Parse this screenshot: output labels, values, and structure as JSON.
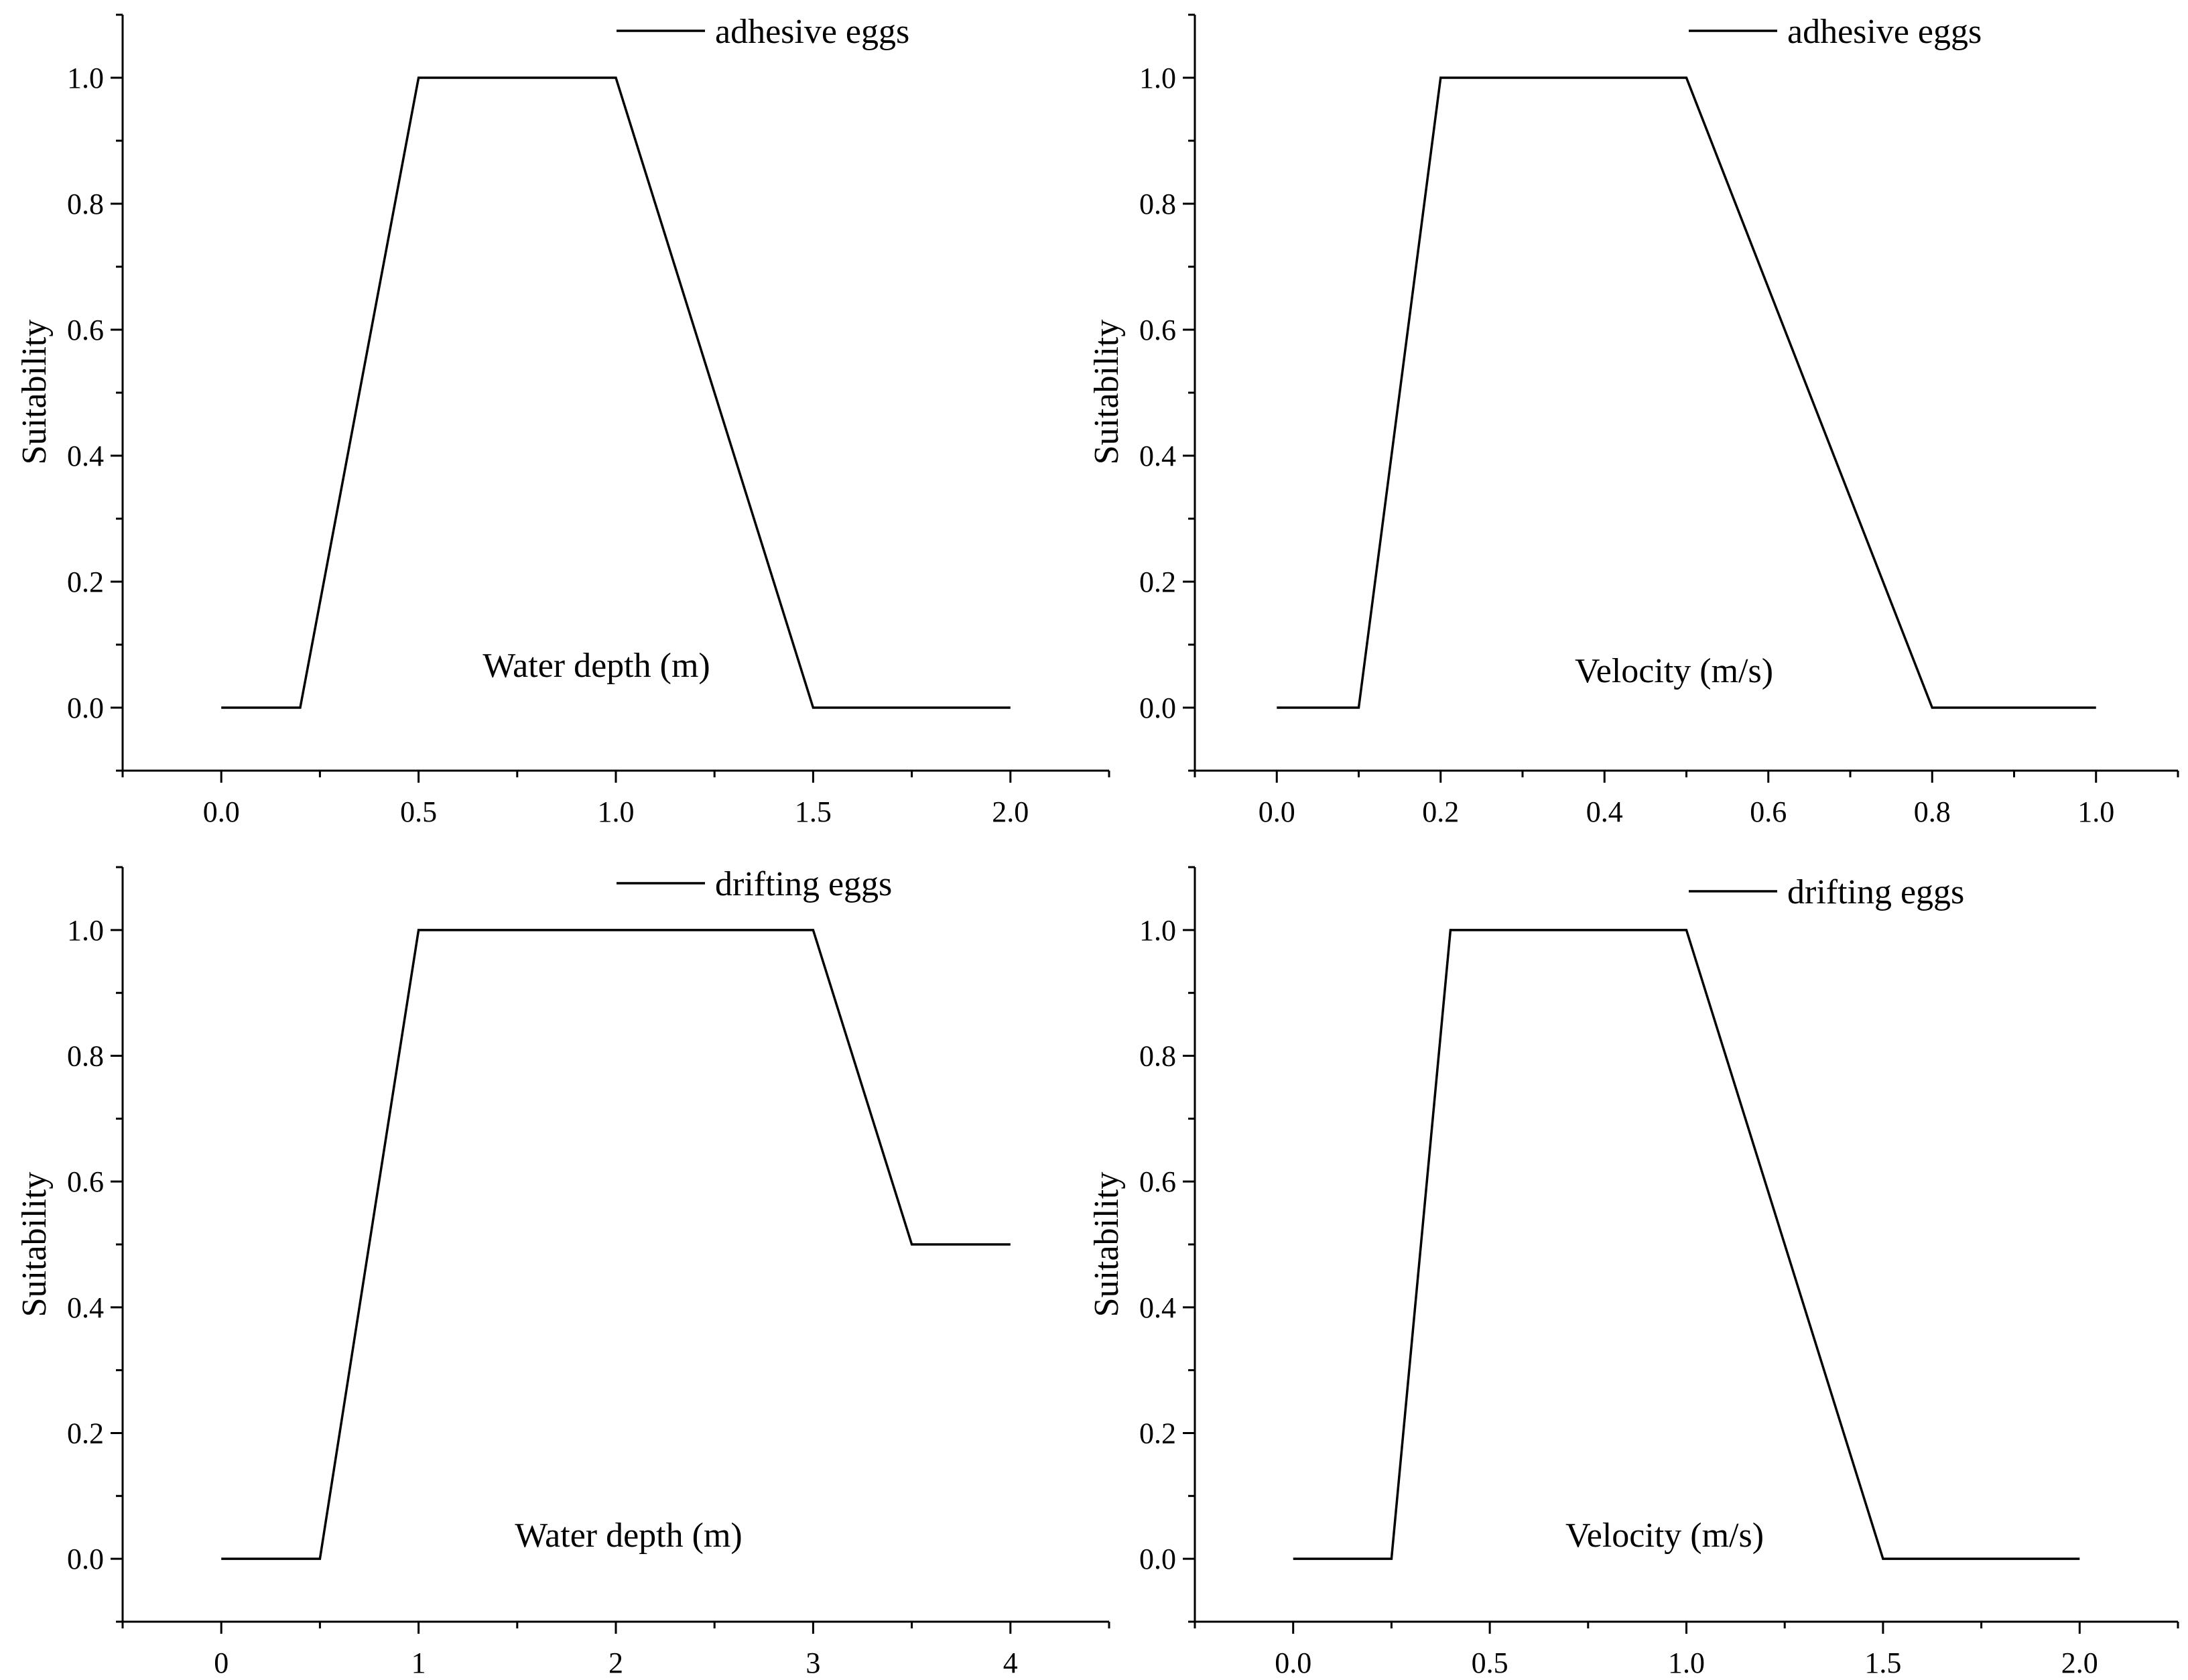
{
  "chart_data": [
    {
      "type": "line",
      "panel": "top-left",
      "legend": "adhesive eggs",
      "legend_position": "top-right",
      "xlabel": "Water depth (m)",
      "ylabel": "Suitability",
      "xlim": [
        -0.25,
        2.25
      ],
      "ylim": [
        -0.1,
        1.1
      ],
      "xticks": [
        0.0,
        0.5,
        1.0,
        1.5,
        2.0
      ],
      "xtick_labels": [
        "0.0",
        "0.5",
        "1.0",
        "1.5",
        "2.0"
      ],
      "yticks": [
        0.0,
        0.2,
        0.4,
        0.6,
        0.8,
        1.0
      ],
      "ytick_labels": [
        "0.0",
        "0.2",
        "0.4",
        "0.6",
        "0.8",
        "1.0"
      ],
      "x": [
        0.0,
        0.2,
        0.5,
        1.0,
        1.5,
        2.0
      ],
      "y": [
        0.0,
        0.0,
        1.0,
        1.0,
        0.0,
        0.0
      ]
    },
    {
      "type": "line",
      "panel": "top-right",
      "legend": "adhesive eggs",
      "legend_position": "top-right",
      "xlabel": "Velocity (m/s)",
      "ylabel": "Suitability",
      "xlim": [
        -0.1,
        1.1
      ],
      "ylim": [
        -0.1,
        1.1
      ],
      "xticks": [
        0.0,
        0.2,
        0.4,
        0.6,
        0.8,
        1.0
      ],
      "xtick_labels": [
        "0.0",
        "0.2",
        "0.4",
        "0.6",
        "0.8",
        "1.0"
      ],
      "yticks": [
        0.0,
        0.2,
        0.4,
        0.6,
        0.8,
        1.0
      ],
      "ytick_labels": [
        "0.0",
        "0.2",
        "0.4",
        "0.6",
        "0.8",
        "1.0"
      ],
      "x": [
        0.0,
        0.1,
        0.2,
        0.5,
        0.8,
        1.0
      ],
      "y": [
        0.0,
        0.0,
        1.0,
        1.0,
        0.0,
        0.0
      ]
    },
    {
      "type": "line",
      "panel": "bottom-left",
      "legend": "drifting eggs",
      "legend_position": "top-right",
      "xlabel": "Water depth (m)",
      "ylabel": "Suitability",
      "xlim": [
        -0.5,
        4.5
      ],
      "ylim": [
        -0.1,
        1.1
      ],
      "xticks": [
        0,
        1,
        2,
        3,
        4
      ],
      "xtick_labels": [
        "0",
        "1",
        "2",
        "3",
        "4"
      ],
      "yticks": [
        0.0,
        0.2,
        0.4,
        0.6,
        0.8,
        1.0
      ],
      "ytick_labels": [
        "0.0",
        "0.2",
        "0.4",
        "0.6",
        "0.8",
        "1.0"
      ],
      "x": [
        0.0,
        0.5,
        1.0,
        3.0,
        3.5,
        4.0
      ],
      "y": [
        0.0,
        0.0,
        1.0,
        1.0,
        0.5,
        0.5
      ]
    },
    {
      "type": "line",
      "panel": "bottom-right",
      "legend": "drifting eggs",
      "legend_position": "top-right",
      "xlabel": "Velocity (m/s)",
      "ylabel": "Suitability",
      "xlim": [
        -0.25,
        2.25
      ],
      "ylim": [
        -0.1,
        1.1
      ],
      "xticks": [
        0.0,
        0.5,
        1.0,
        1.5,
        2.0
      ],
      "xtick_labels": [
        "0.0",
        "0.5",
        "1.0",
        "1.5",
        "2.0"
      ],
      "yticks": [
        0.0,
        0.2,
        0.4,
        0.6,
        0.8,
        1.0
      ],
      "ytick_labels": [
        "0.0",
        "0.2",
        "0.4",
        "0.6",
        "0.8",
        "1.0"
      ],
      "x": [
        0.0,
        0.25,
        0.4,
        1.0,
        1.5,
        2.0
      ],
      "y": [
        0.0,
        0.0,
        1.0,
        1.0,
        0.0,
        0.0
      ]
    }
  ]
}
